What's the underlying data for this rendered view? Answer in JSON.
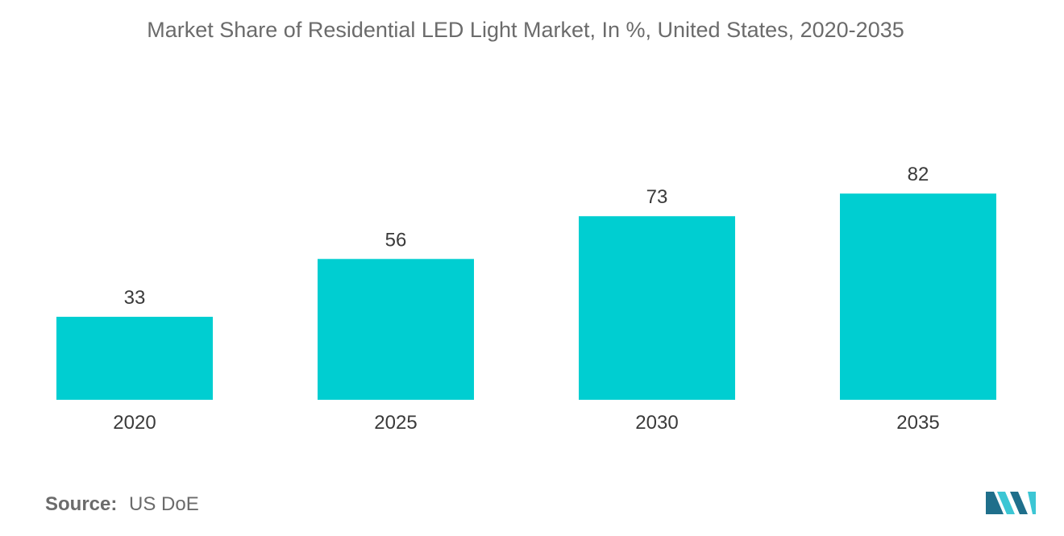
{
  "chart_data": {
    "type": "bar",
    "title": "Market Share of Residential LED Light Market, In %, United States, 2020-2035",
    "categories": [
      "2020",
      "2025",
      "2030",
      "2035"
    ],
    "values": [
      33,
      56,
      73,
      82
    ],
    "xlabel": "",
    "ylabel": "",
    "ylim": [
      0,
      100
    ],
    "grid": false,
    "bar_color": "#00ced1"
  },
  "source": {
    "label": "Source:",
    "value": "US DoE"
  },
  "colors": {
    "logo_dark": "#1f6f8b",
    "logo_light": "#3cc6d4"
  }
}
